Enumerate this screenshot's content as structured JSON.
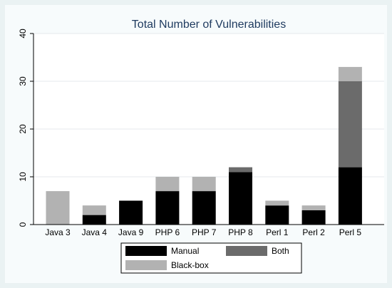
{
  "chart_data": {
    "type": "bar",
    "stacked": true,
    "title": "Total Number of Vulnerabilities",
    "xlabel": "",
    "ylabel": "",
    "ylim": [
      0,
      40
    ],
    "yticks": [
      0,
      10,
      20,
      30,
      40
    ],
    "grid": "horizontal",
    "legend_position": "bottom",
    "categories": [
      "Java 3",
      "Java 4",
      "Java 9",
      "PHP 6",
      "PHP 7",
      "PHP 8",
      "Perl 1",
      "Perl 2",
      "Perl 5"
    ],
    "series": [
      {
        "name": "Manual",
        "color": "#000000",
        "values": [
          0,
          2,
          5,
          7,
          7,
          11,
          4,
          3,
          12
        ]
      },
      {
        "name": "Both",
        "color": "#6b6b6b",
        "values": [
          0,
          0,
          0,
          0,
          0,
          1,
          0,
          0,
          18
        ]
      },
      {
        "name": "Black-box",
        "color": "#b2b2b2",
        "values": [
          7,
          2,
          0,
          3,
          3,
          0,
          1,
          1,
          3
        ]
      }
    ]
  }
}
